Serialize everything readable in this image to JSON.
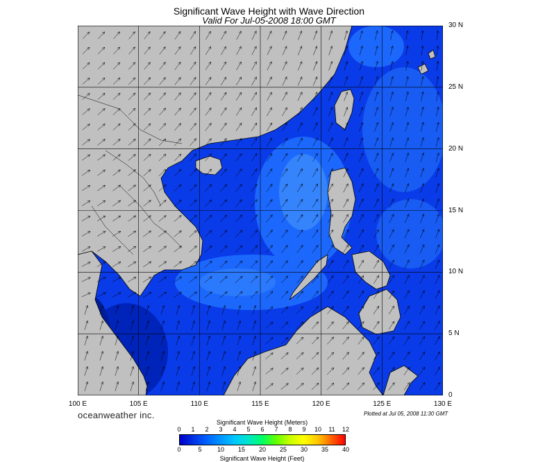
{
  "title": "Significant Wave Height with Wave Direction",
  "subtitle": "Valid For Jul-05-2008 18:00 GMT",
  "map": {
    "lon_range": [
      100,
      130
    ],
    "lat_range": [
      0,
      30
    ],
    "lat_labels": [
      "30 N",
      "25 N",
      "20 N",
      "15 N",
      "10 N",
      "5 N",
      "0"
    ],
    "lon_labels": [
      "100 E",
      "105 E",
      "110 E",
      "115 E",
      "120 E",
      "125 E",
      "130 E"
    ],
    "gridlines": true,
    "land_color": "#c0c0c0",
    "arrow_field": "wave direction arrows over ocean"
  },
  "brand": "oceanweather inc.",
  "plotted": "Plotted at Jul 05, 2008 11:30 GMT",
  "colorbar": {
    "title_top": "Significant Wave Height (Meters)",
    "meters_ticks": [
      "0",
      "1",
      "2",
      "3",
      "4",
      "5",
      "6",
      "7",
      "8",
      "9",
      "10",
      "11",
      "12"
    ],
    "feet_ticks": [
      "0",
      "5",
      "10",
      "15",
      "20",
      "25",
      "30",
      "35",
      "40"
    ],
    "title_bottom": "Significant Wave Height (Feet)",
    "colors": [
      "#0000c8",
      "#0032e6",
      "#0064ff",
      "#0096ff",
      "#00c8ff",
      "#00e6c8",
      "#00ff64",
      "#64ff00",
      "#c8ff00",
      "#ffff00",
      "#ffc800",
      "#ff6400",
      "#ff0000"
    ]
  }
}
